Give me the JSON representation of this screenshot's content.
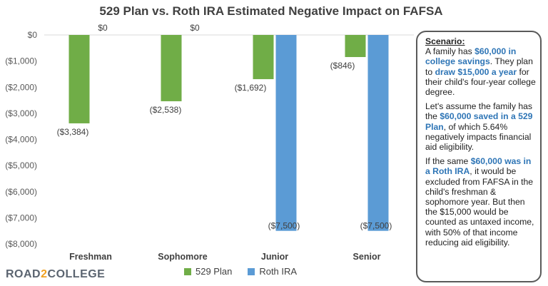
{
  "chart_data": {
    "type": "bar",
    "title": "529 Plan vs. Roth IRA Estimated Negative Impact  on FAFSA",
    "categories": [
      "Freshman",
      "Sophomore",
      "Junior",
      "Senior"
    ],
    "series": [
      {
        "name": "529 Plan",
        "color": "#70ad47",
        "values": [
          -3384,
          -2538,
          -1692,
          -846
        ],
        "labels": [
          "($3,384)",
          "($2,538)",
          "($1,692)",
          "($846)"
        ]
      },
      {
        "name": "Roth IRA",
        "color": "#5b9bd5",
        "values": [
          0,
          0,
          -7500,
          -7500
        ],
        "labels": [
          "$0",
          "$0",
          "($7,500)",
          "($7,500)"
        ]
      }
    ],
    "ylim": [
      -8000,
      0
    ],
    "yticks": [
      0,
      -1000,
      -2000,
      -3000,
      -4000,
      -5000,
      -6000,
      -7000,
      -8000
    ],
    "ytick_labels": [
      "$0",
      "($1,000)",
      "($2,000)",
      "($3,000)",
      "($4,000)",
      "($5,000)",
      "($6,000)",
      "($7,000)",
      "($8,000)"
    ],
    "xlabel": "",
    "ylabel": "",
    "grid": false,
    "legend": "bottom"
  },
  "logo": {
    "text_a": "ROAD",
    "text_num": "2",
    "text_b": "COLLEGE"
  },
  "scenario": {
    "title": "Scenario:",
    "p1": {
      "a": "A family has ",
      "b": "$60,000 in college savings",
      "c": ". They plan to ",
      "d": "draw $15,000 a year",
      "e": " for their child's four-year college degree."
    },
    "p2": {
      "a": "Let's assume the family has the ",
      "b": "$60,000 saved in a 529 Plan",
      "c": ", of which 5.64% negatively impacts financial aid eligibility."
    },
    "p3": {
      "a": "If the same ",
      "b": "$60,000 was in a Roth IRA",
      "c": ", it would be excluded from FAFSA in the child's freshman & sophomore year. But then the $15,000 would be counted as untaxed income, with 50% of that income reducing aid eligibility."
    }
  }
}
